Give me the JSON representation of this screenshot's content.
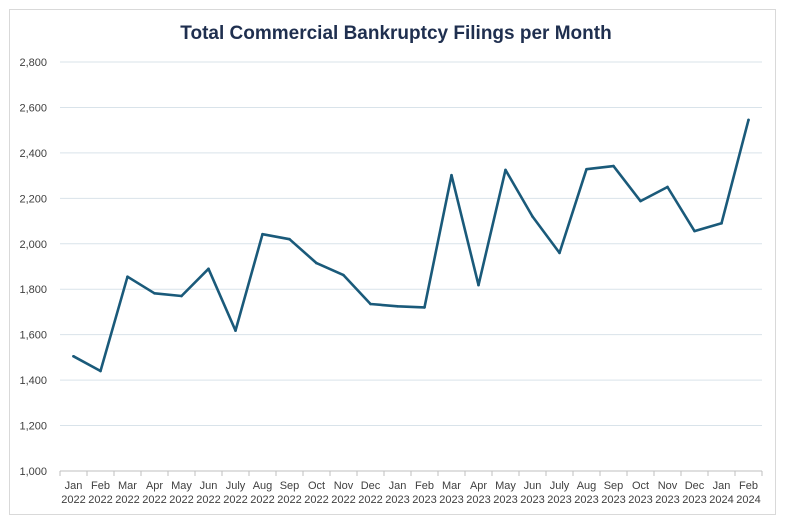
{
  "chart_data": {
    "type": "line",
    "title": "Total Commercial Bankruptcy Filings per Month",
    "xlabel": "",
    "ylabel": "",
    "ylim": [
      1000,
      2800
    ],
    "yticks": [
      "1,000",
      "1,200",
      "1,400",
      "1,600",
      "1,800",
      "2,000",
      "2,200",
      "2,400",
      "2,600",
      "2,800"
    ],
    "ytick_values": [
      1000,
      1200,
      1400,
      1600,
      1800,
      2000,
      2200,
      2400,
      2600,
      2800
    ],
    "grid": true,
    "legend": "none",
    "line_color": "#1a5a7a",
    "categories": [
      {
        "month": "Jan",
        "year": "2022"
      },
      {
        "month": "Feb",
        "year": "2022"
      },
      {
        "month": "Mar",
        "year": "2022"
      },
      {
        "month": "Apr",
        "year": "2022"
      },
      {
        "month": "May",
        "year": "2022"
      },
      {
        "month": "Jun",
        "year": "2022"
      },
      {
        "month": "July",
        "year": "2022"
      },
      {
        "month": "Aug",
        "year": "2022"
      },
      {
        "month": "Sep",
        "year": "2022"
      },
      {
        "month": "Oct",
        "year": "2022"
      },
      {
        "month": "Nov",
        "year": "2022"
      },
      {
        "month": "Dec",
        "year": "2022"
      },
      {
        "month": "Jan",
        "year": "2023"
      },
      {
        "month": "Feb",
        "year": "2023"
      },
      {
        "month": "Mar",
        "year": "2023"
      },
      {
        "month": "Apr",
        "year": "2023"
      },
      {
        "month": "May",
        "year": "2023"
      },
      {
        "month": "Jun",
        "year": "2023"
      },
      {
        "month": "July",
        "year": "2023"
      },
      {
        "month": "Aug",
        "year": "2023"
      },
      {
        "month": "Sep",
        "year": "2023"
      },
      {
        "month": "Oct",
        "year": "2023"
      },
      {
        "month": "Nov",
        "year": "2023"
      },
      {
        "month": "Dec",
        "year": "2023"
      },
      {
        "month": "Jan",
        "year": "2024"
      },
      {
        "month": "Feb",
        "year": "2024"
      }
    ],
    "series": [
      {
        "values": [
          1505,
          1440,
          1855,
          1782,
          1770,
          1890,
          1618,
          2042,
          2020,
          1915,
          1862,
          1735,
          1725,
          1720,
          2302,
          1818,
          2325,
          2120,
          1960,
          2328,
          2342,
          2188,
          2250,
          2056,
          2090,
          2545
        ]
      }
    ]
  }
}
